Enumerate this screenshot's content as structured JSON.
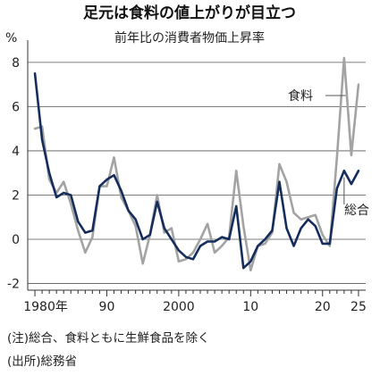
{
  "chart_data": {
    "type": "line",
    "title": "足元は食料の値上がりが目立つ",
    "subtitle": "前年比の消費者物価上昇率",
    "unit_label": "%",
    "x": [
      1980,
      1981,
      1982,
      1983,
      1984,
      1985,
      1986,
      1987,
      1988,
      1989,
      1990,
      1991,
      1992,
      1993,
      1994,
      1995,
      1996,
      1997,
      1998,
      1999,
      2000,
      2001,
      2002,
      2003,
      2004,
      2005,
      2006,
      2007,
      2008,
      2009,
      2010,
      2011,
      2012,
      2013,
      2014,
      2015,
      2016,
      2017,
      2018,
      2019,
      2020,
      2021,
      2022,
      2023,
      2024,
      2025
    ],
    "xlim": [
      1979,
      2026
    ],
    "x_ticks": [
      {
        "value": 1980,
        "label": "1980年"
      },
      {
        "value": 1990,
        "label": "90"
      },
      {
        "value": 2000,
        "label": "2000"
      },
      {
        "value": 2010,
        "label": "10"
      },
      {
        "value": 2020,
        "label": "20"
      },
      {
        "value": 2025,
        "label": "25"
      }
    ],
    "ylim": [
      -2.3,
      8.6
    ],
    "y_ticks": [
      {
        "value": -2,
        "label": "-2"
      },
      {
        "value": 0,
        "label": "0"
      },
      {
        "value": 2,
        "label": "2"
      },
      {
        "value": 4,
        "label": "4"
      },
      {
        "value": 6,
        "label": "6"
      },
      {
        "value": 8,
        "label": "8"
      }
    ],
    "series": [
      {
        "name": "食料",
        "color": "#a3a3a3",
        "values": [
          5.0,
          5.1,
          2.7,
          2.1,
          2.6,
          1.6,
          0.4,
          -0.6,
          0.1,
          2.4,
          2.4,
          3.7,
          1.9,
          1.3,
          0.6,
          -1.1,
          0.2,
          2.0,
          0.3,
          0.5,
          -1.0,
          -0.9,
          -0.6,
          0.0,
          0.7,
          -0.6,
          -0.3,
          0.1,
          3.1,
          0.6,
          -1.4,
          -0.3,
          -0.2,
          0.3,
          3.4,
          2.6,
          1.2,
          0.9,
          1.0,
          1.1,
          0.2,
          -0.3,
          3.7,
          8.2,
          3.8,
          7.0
        ]
      },
      {
        "name": "総合",
        "color": "#152d5c",
        "values": [
          7.5,
          4.5,
          3.0,
          1.9,
          2.1,
          2.0,
          0.8,
          0.3,
          0.4,
          2.4,
          2.7,
          2.9,
          2.2,
          1.3,
          0.9,
          0.0,
          0.2,
          1.7,
          0.5,
          0.0,
          -0.5,
          -0.8,
          -0.9,
          -0.3,
          -0.1,
          -0.1,
          0.1,
          0.0,
          1.5,
          -1.3,
          -1.0,
          -0.3,
          0.0,
          0.4,
          2.6,
          0.5,
          -0.3,
          0.5,
          0.9,
          0.6,
          -0.2,
          -0.2,
          2.3,
          3.1,
          2.5,
          3.1
        ]
      }
    ]
  },
  "notes": {
    "note1": "(注)総合、食料ともに生鮮食品を除く",
    "note2": "(出所)総務省"
  }
}
